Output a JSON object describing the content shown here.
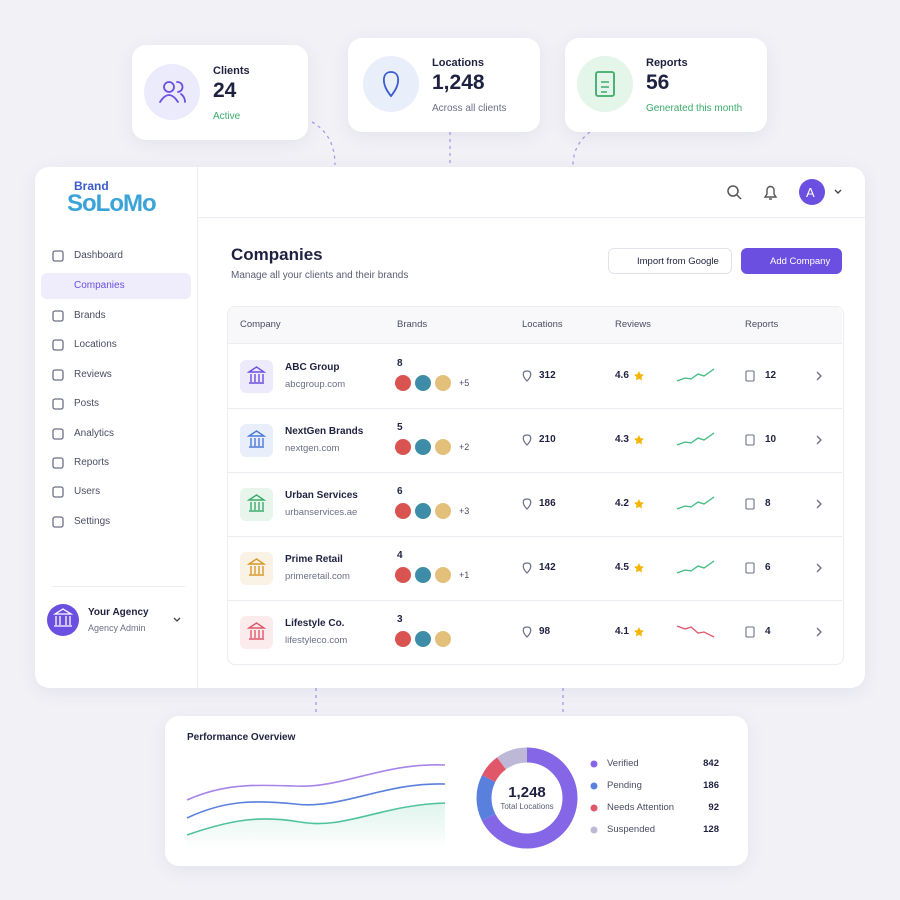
{
  "stats": [
    {
      "label": "Clients",
      "value": "24",
      "note": "Active"
    },
    {
      "label": "Locations",
      "value": "1,248",
      "note": "Across all clients"
    },
    {
      "label": "Reports",
      "value": "56",
      "note": "Generated this month"
    }
  ],
  "logo": {
    "top": "Brand",
    "main": "SoLoMo"
  },
  "header": {
    "avatar": "A"
  },
  "sidebar": {
    "nav": [
      "Dashboard",
      "Companies",
      "Brands",
      "Locations",
      "Reviews",
      "Posts",
      "Analytics",
      "Reports",
      "Users",
      "Settings"
    ],
    "active": 1,
    "account": {
      "name": "Your Agency",
      "role": "Agency Admin"
    }
  },
  "page": {
    "title": "Companies",
    "subtitle": "Manage all your clients and their brands",
    "buttons": [
      "Import from Google",
      "Add Company"
    ]
  },
  "table": {
    "columns": [
      "Company",
      "Brands",
      "Locations",
      "Reviews",
      "Reports"
    ],
    "rows": [
      {
        "company": "ABC Group",
        "domain": "abcgroup.com",
        "brands": 8,
        "extra": "+5",
        "locations": 312,
        "rating": 4.6,
        "reports": 12,
        "icon_color": "#6b4fe0",
        "trend_color": "#3dba7f"
      },
      {
        "company": "NextGen Brands",
        "domain": "nextgen.com",
        "brands": 5,
        "extra": "+2",
        "locations": 210,
        "rating": 4.3,
        "reports": 10,
        "icon_color": "#4a78d8",
        "trend_color": "#3dba7f"
      },
      {
        "company": "Urban Services",
        "domain": "urbanservices.ae",
        "brands": 6,
        "extra": "+3",
        "locations": 186,
        "rating": 4.2,
        "reports": 8,
        "icon_color": "#3dab6a",
        "trend_color": "#3dba7f"
      },
      {
        "company": "Prime Retail",
        "domain": "primeretail.com",
        "brands": 4,
        "extra": "+1",
        "locations": 142,
        "rating": 4.5,
        "reports": 6,
        "icon_color": "#d99a2b",
        "trend_color": "#3dba7f"
      },
      {
        "company": "Lifestyle Co.",
        "domain": "lifestyleco.com",
        "brands": 3,
        "locations": 98,
        "rating": 4.1,
        "reports": 4,
        "icon_color": "#e0576a",
        "trend_color": "#e0576a"
      }
    ]
  },
  "performance": {
    "title": "Performance Overview",
    "total": "1,248",
    "total_label": "Total Locations",
    "segments": [
      {
        "name": "Verified",
        "value": 842,
        "color": "#8466e6"
      },
      {
        "name": "Pending",
        "value": 186,
        "color": "#5a80de"
      },
      {
        "name": "Needs Attention",
        "value": 92,
        "color": "#e0576a"
      },
      {
        "name": "Suspended",
        "value": 128,
        "color": "#bdb8d6"
      }
    ]
  }
}
